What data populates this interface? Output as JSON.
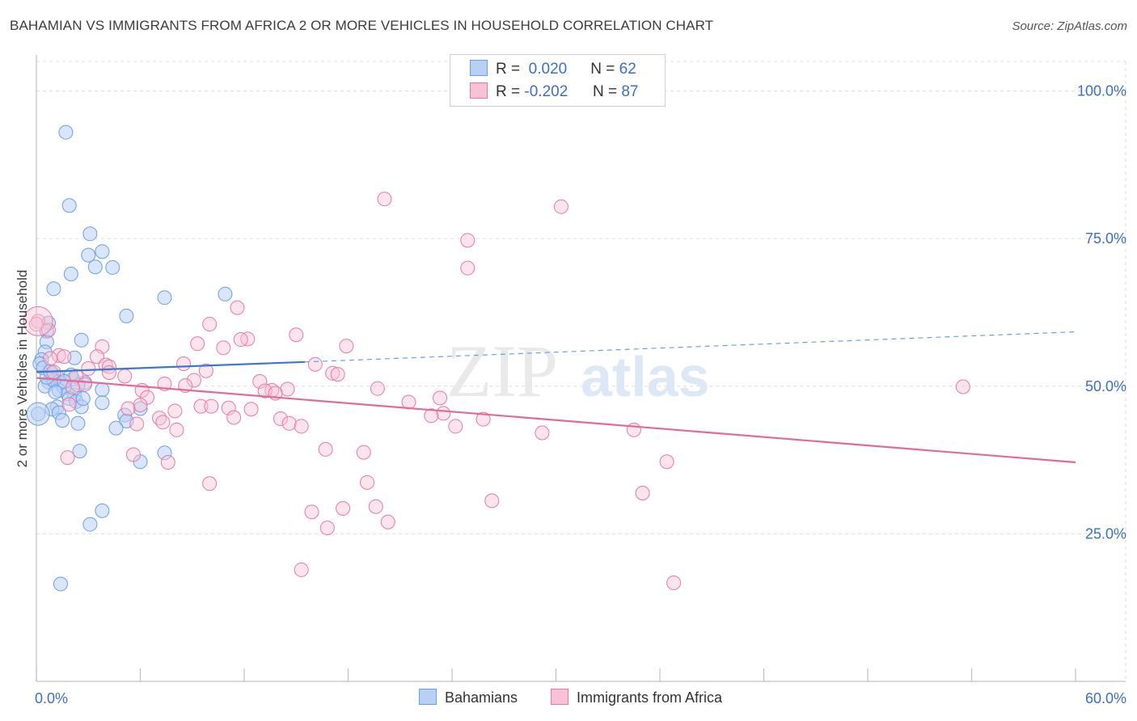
{
  "title": "BAHAMIAN VS IMMIGRANTS FROM AFRICA 2 OR MORE VEHICLES IN HOUSEHOLD CORRELATION CHART",
  "source": "Source: ZipAtlas.com",
  "watermark": {
    "part1": "ZIP",
    "part2": "atlas"
  },
  "legend": {
    "r_label": "R =",
    "n_label": "N =",
    "series1": {
      "r": "0.020",
      "n": "62"
    },
    "series2": {
      "r": "-0.202",
      "n": "87"
    }
  },
  "bottom_legend": {
    "series1": "Bahamians",
    "series2": "Immigrants from Africa"
  },
  "colors": {
    "blue": "#6b9ee8",
    "blue_fill": "#b9d0f5",
    "pink": "#e87aa0",
    "pink_fill": "#f7c3d4",
    "axis_text": "#3a6fc8"
  },
  "chart_data": {
    "type": "scatter",
    "title": "BAHAMIAN VS IMMIGRANTS FROM AFRICA 2 OR MORE VEHICLES IN HOUSEHOLD CORRELATION CHART",
    "xlabel": "",
    "ylabel": "2 or more Vehicles in Household",
    "xlim": [
      0,
      60
    ],
    "ylim": [
      0,
      105
    ],
    "x_tick_labels": [
      "0.0%",
      "60.0%"
    ],
    "y_ticks": [
      25,
      50,
      75,
      100
    ],
    "y_tick_labels": [
      "25.0%",
      "50.0%",
      "75.0%",
      "100.0%"
    ],
    "grid": "horizontal dashed",
    "legend_position": "top-center",
    "series": [
      {
        "name": "Bahamians",
        "color": "#6b9ee8",
        "trend": {
          "x": [
            0,
            15.5
          ],
          "y": [
            52.4,
            54.1
          ],
          "dashed_extension_to": [
            60,
            59.2
          ]
        },
        "points": [
          [
            1.7,
            93.0
          ],
          [
            1.9,
            80.6
          ],
          [
            3.1,
            75.8
          ],
          [
            3.8,
            72.8
          ],
          [
            3.0,
            72.2
          ],
          [
            2.0,
            69.0
          ],
          [
            3.4,
            70.2
          ],
          [
            4.4,
            70.1
          ],
          [
            1.0,
            66.5
          ],
          [
            7.4,
            65.0
          ],
          [
            10.9,
            65.6
          ],
          [
            5.2,
            61.9
          ],
          [
            0.7,
            60.7
          ],
          [
            0.6,
            59.3
          ],
          [
            0.6,
            57.5
          ],
          [
            2.6,
            57.8
          ],
          [
            0.5,
            55.8
          ],
          [
            2.2,
            54.8
          ],
          [
            0.3,
            54.5
          ],
          [
            0.2,
            53.8
          ],
          [
            0.4,
            53.1
          ],
          [
            0.9,
            52.2
          ],
          [
            1.2,
            51.6
          ],
          [
            0.9,
            51.1
          ],
          [
            2.1,
            51.2
          ],
          [
            0.7,
            50.7
          ],
          [
            1.4,
            50.5
          ],
          [
            2.8,
            50.6
          ],
          [
            0.5,
            50.0
          ],
          [
            1.6,
            49.8
          ],
          [
            1.3,
            49.3
          ],
          [
            3.8,
            49.4
          ],
          [
            1.8,
            48.7
          ],
          [
            2.2,
            48.5
          ],
          [
            1.9,
            47.9
          ],
          [
            2.3,
            47.4
          ],
          [
            3.8,
            47.2
          ],
          [
            2.6,
            46.5
          ],
          [
            1.2,
            46.5
          ],
          [
            0.9,
            46.1
          ],
          [
            6.0,
            46.2
          ],
          [
            1.3,
            45.5
          ],
          [
            5.1,
            45.1
          ],
          [
            0.1,
            45.3
          ],
          [
            1.5,
            44.2
          ],
          [
            5.2,
            44.1
          ],
          [
            2.4,
            43.7
          ],
          [
            4.6,
            42.9
          ],
          [
            2.5,
            39.0
          ],
          [
            7.4,
            38.7
          ],
          [
            6.0,
            37.2
          ],
          [
            3.8,
            28.9
          ],
          [
            3.1,
            26.6
          ],
          [
            1.4,
            16.5
          ],
          [
            1.0,
            51.0
          ],
          [
            2.4,
            50.2
          ],
          [
            0.6,
            51.5
          ],
          [
            1.1,
            49.0
          ],
          [
            2.0,
            51.9
          ],
          [
            0.8,
            52.5
          ],
          [
            1.6,
            50.8
          ],
          [
            2.7,
            47.9
          ]
        ]
      },
      {
        "name": "Immigrants from Africa",
        "color": "#e87aa0",
        "trend": {
          "x": [
            0,
            60
          ],
          "y": [
            51.4,
            37.1
          ]
        },
        "points": [
          [
            20.1,
            81.7
          ],
          [
            30.3,
            80.4
          ],
          [
            24.9,
            74.7
          ],
          [
            24.9,
            70.0
          ],
          [
            0.1,
            61.0
          ],
          [
            11.6,
            63.3
          ],
          [
            10.0,
            60.5
          ],
          [
            0.7,
            59.5
          ],
          [
            15.0,
            58.7
          ],
          [
            12.2,
            58.0
          ],
          [
            11.8,
            57.9
          ],
          [
            9.3,
            57.2
          ],
          [
            17.9,
            56.8
          ],
          [
            3.8,
            56.7
          ],
          [
            10.8,
            56.5
          ],
          [
            1.3,
            55.2
          ],
          [
            0.8,
            54.7
          ],
          [
            1.6,
            55.0
          ],
          [
            3.5,
            55.0
          ],
          [
            8.5,
            53.8
          ],
          [
            4.0,
            53.6
          ],
          [
            16.1,
            53.7
          ],
          [
            4.2,
            53.3
          ],
          [
            3.0,
            53.0
          ],
          [
            4.2,
            52.3
          ],
          [
            9.8,
            52.6
          ],
          [
            2.3,
            51.7
          ],
          [
            17.1,
            52.2
          ],
          [
            17.4,
            52.0
          ],
          [
            5.1,
            51.7
          ],
          [
            9.1,
            51.0
          ],
          [
            12.9,
            50.8
          ],
          [
            2.8,
            50.3
          ],
          [
            7.4,
            50.4
          ],
          [
            8.6,
            50.1
          ],
          [
            2.1,
            49.8
          ],
          [
            53.5,
            49.9
          ],
          [
            19.7,
            49.6
          ],
          [
            14.5,
            49.5
          ],
          [
            6.1,
            49.3
          ],
          [
            13.6,
            49.3
          ],
          [
            13.2,
            49.2
          ],
          [
            13.8,
            48.8
          ],
          [
            6.4,
            48.1
          ],
          [
            23.3,
            48.0
          ],
          [
            21.5,
            47.3
          ],
          [
            6.0,
            46.8
          ],
          [
            1.9,
            46.9
          ],
          [
            9.5,
            46.6
          ],
          [
            10.1,
            46.6
          ],
          [
            11.1,
            46.3
          ],
          [
            12.4,
            46.1
          ],
          [
            5.3,
            46.2
          ],
          [
            8.0,
            45.8
          ],
          [
            23.5,
            45.4
          ],
          [
            22.8,
            45.0
          ],
          [
            11.4,
            44.7
          ],
          [
            14.1,
            44.5
          ],
          [
            7.1,
            44.6
          ],
          [
            25.8,
            44.4
          ],
          [
            7.3,
            43.9
          ],
          [
            5.8,
            43.6
          ],
          [
            14.6,
            43.7
          ],
          [
            15.3,
            43.2
          ],
          [
            24.2,
            43.2
          ],
          [
            8.1,
            42.6
          ],
          [
            34.5,
            42.6
          ],
          [
            29.2,
            42.1
          ],
          [
            16.7,
            39.3
          ],
          [
            18.9,
            38.8
          ],
          [
            5.6,
            38.4
          ],
          [
            1.8,
            37.9
          ],
          [
            7.6,
            37.1
          ],
          [
            36.4,
            37.2
          ],
          [
            19.1,
            33.7
          ],
          [
            10.0,
            33.5
          ],
          [
            35.0,
            31.9
          ],
          [
            26.3,
            30.6
          ],
          [
            17.7,
            29.3
          ],
          [
            19.6,
            29.6
          ],
          [
            15.9,
            28.7
          ],
          [
            20.3,
            27.0
          ],
          [
            16.8,
            26.0
          ],
          [
            15.3,
            18.9
          ],
          [
            36.8,
            16.7
          ],
          [
            0.0,
            60.5
          ],
          [
            1.0,
            52.4
          ]
        ]
      }
    ]
  }
}
